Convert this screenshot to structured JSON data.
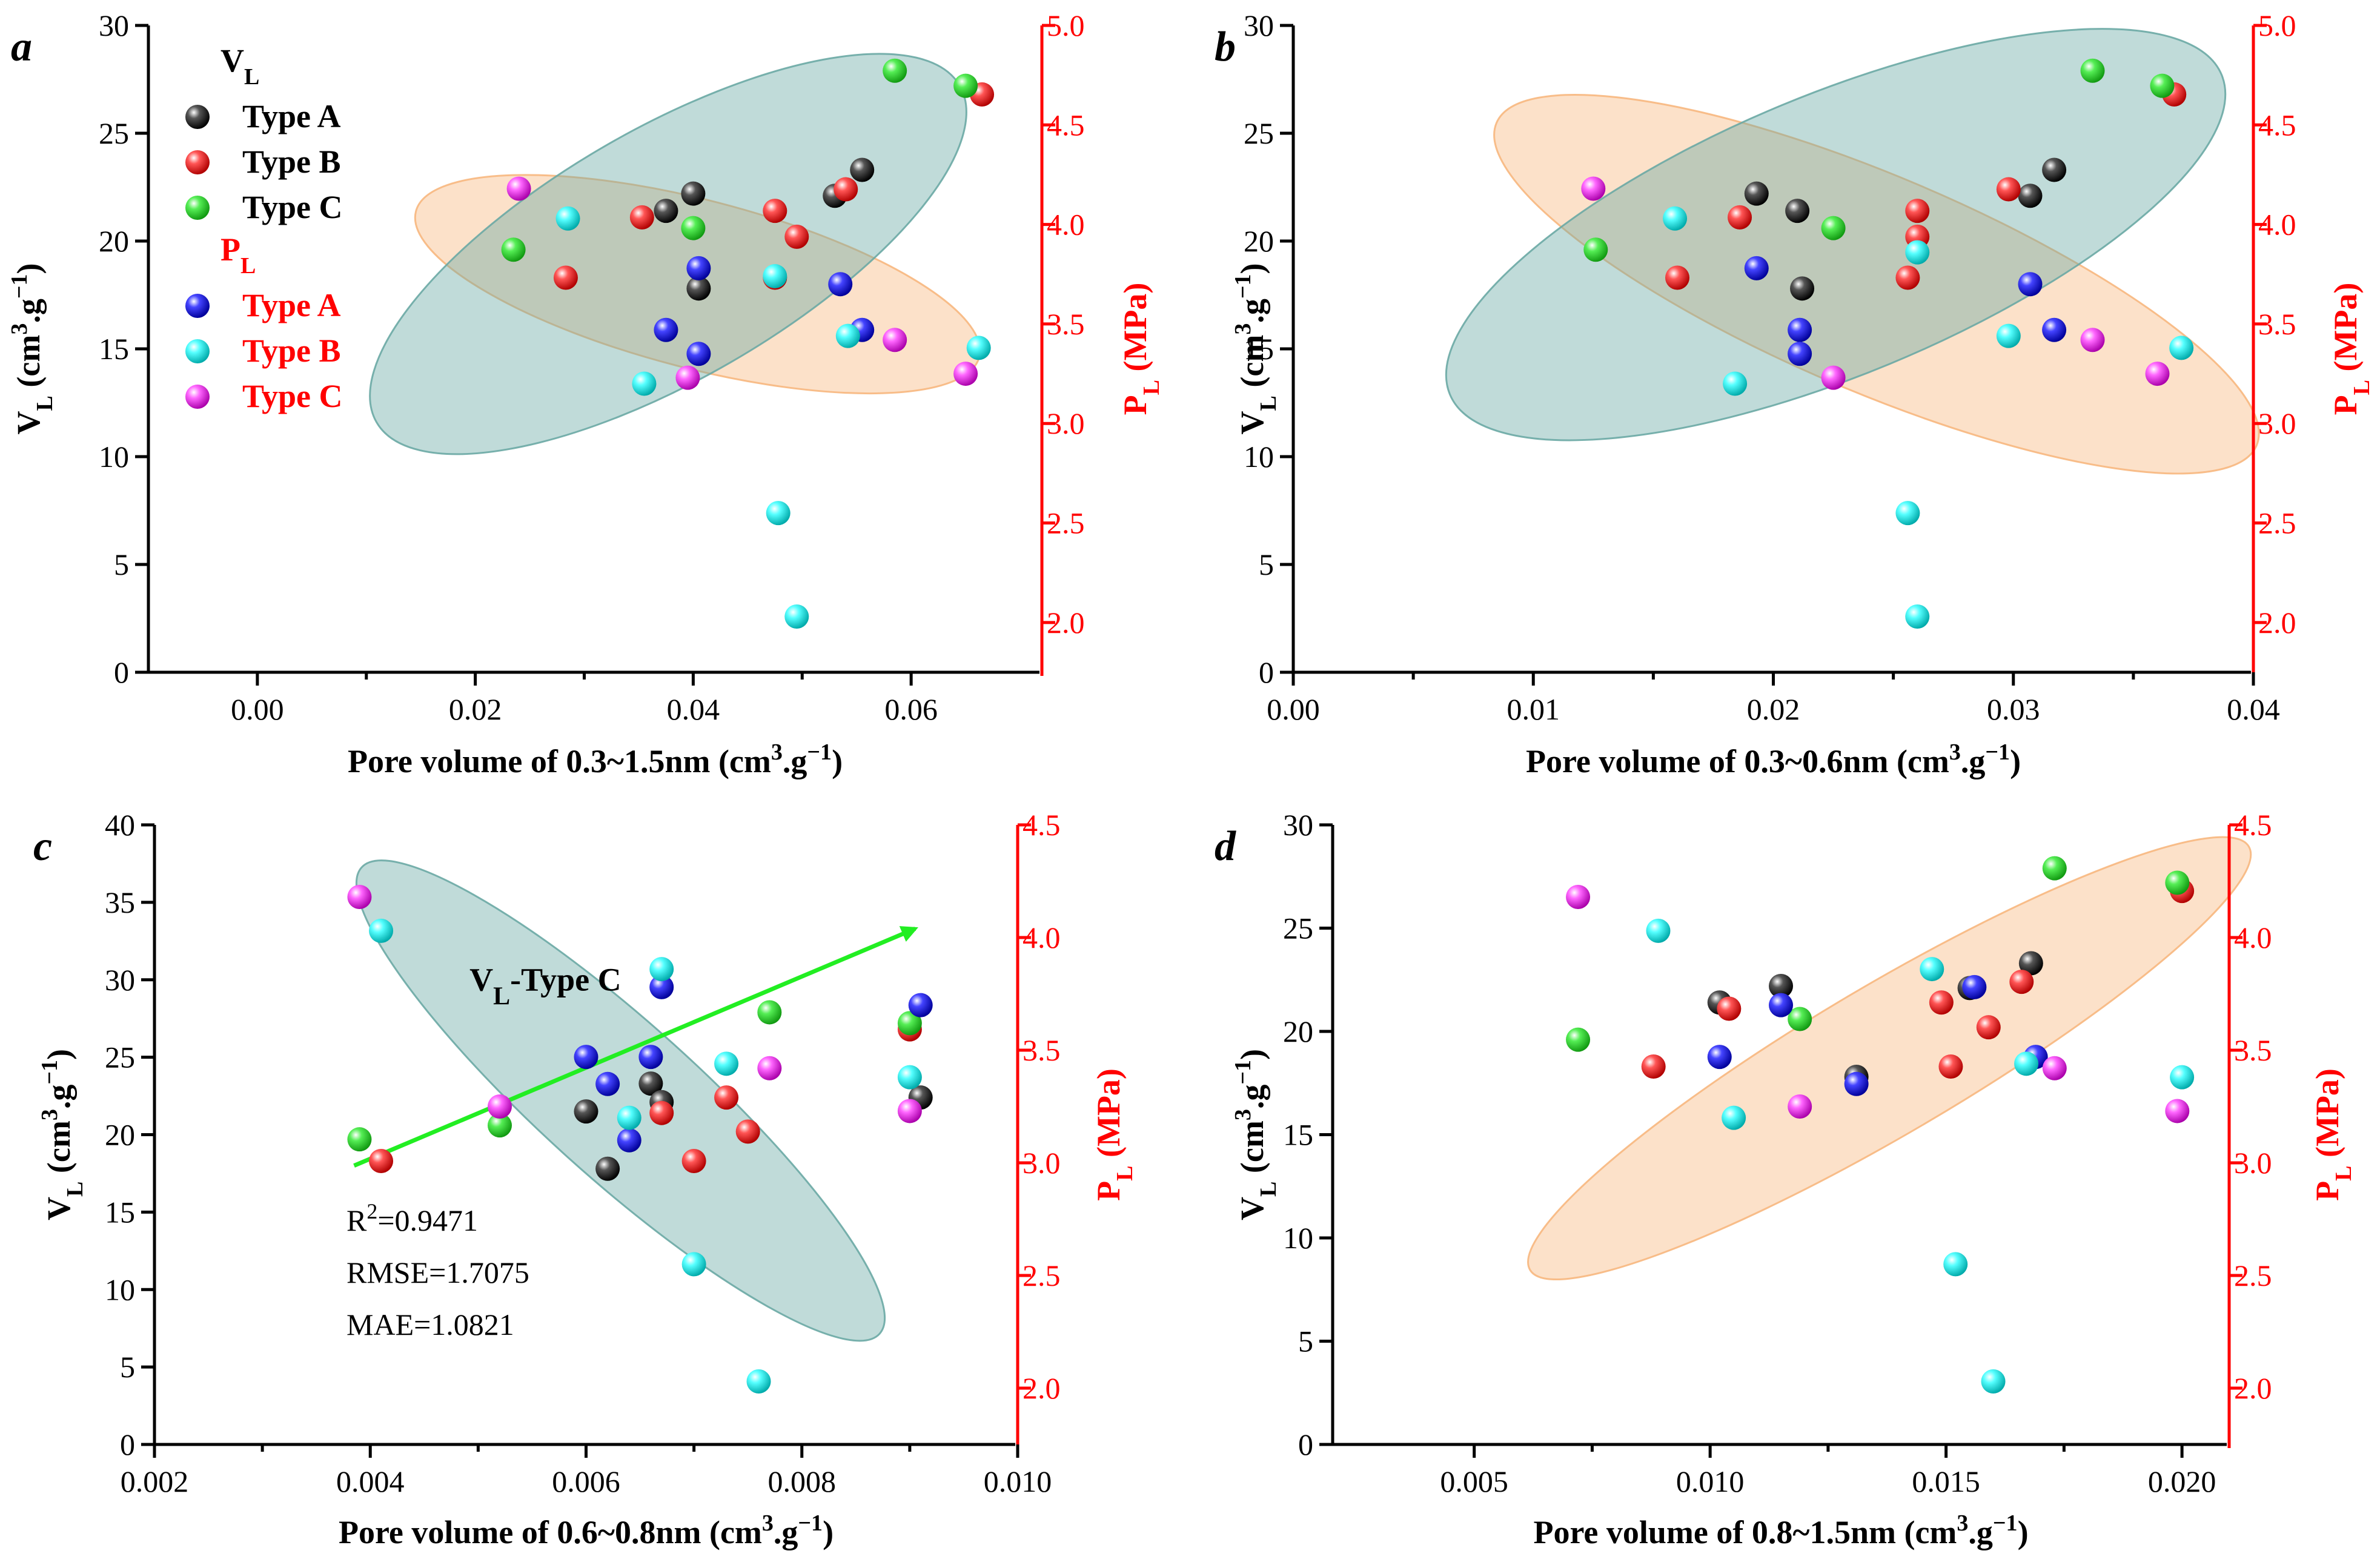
{
  "colors": {
    "type_a_vl": "#111111",
    "type_b_vl": "#ee1111",
    "type_c_vl": "#22dd22",
    "type_a_pl": "#1a1aee",
    "type_b_pl": "#22eeee",
    "type_c_pl": "#ee33ee",
    "axis_right": "#ff0000",
    "ellipse_teal": "#6aa9a4",
    "ellipse_orange": "#f7b77e",
    "arrow": "#22ee22"
  },
  "legend": {
    "vl_header": "V",
    "vl_header_sub": "L",
    "pl_header": "P",
    "pl_header_sub": "L",
    "type_a": "Type A",
    "type_b": "Type B",
    "type_c": "Type C"
  },
  "common": {
    "ylabel_left": "V",
    "ylabel_left_sub": "L",
    "ylabel_left_units": " (cm",
    "ylabel_left_sup": "3",
    "ylabel_left_tail": ".g",
    "ylabel_left_sup2": "−1",
    "ylabel_left_close": ")",
    "ylabel_right": "P",
    "ylabel_right_sub": "L",
    "ylabel_right_units": " (MPa)",
    "xlabel_units": " (cm",
    "xlabel_sup": "3",
    "xlabel_tail": ".g",
    "xlabel_sup2": "−1",
    "xlabel_close": ")"
  },
  "chart_data": [
    {
      "panel": "a",
      "type": "scatter",
      "xlabel": "Pore volume of 0.3~1.5nm",
      "xlim": [
        -0.01,
        0.072
      ],
      "xticks": [
        0.0,
        0.02,
        0.04,
        0.06
      ],
      "xticklabels": [
        "0.00",
        "0.02",
        "0.04",
        "0.06"
      ],
      "ylim_left": [
        0,
        30
      ],
      "yticks_left": [
        0,
        5,
        10,
        15,
        20,
        25,
        30
      ],
      "yticklabels_left": [
        "0",
        "5",
        "10",
        "15",
        "20",
        "25",
        "30"
      ],
      "ylim_right": [
        1.75,
        5.0
      ],
      "yticks_right": [
        2.0,
        2.5,
        3.0,
        3.5,
        4.0,
        4.5,
        5.0
      ],
      "yticklabels_right": [
        "2.0",
        "2.5",
        "3.0",
        "3.5",
        "4.0",
        "4.5",
        "5.0"
      ],
      "ellipses": [
        {
          "color": "orange",
          "cx": 0.0404,
          "cy": 18.0,
          "rx": 0.0267,
          "ry": 3.9,
          "angle_deg": 14.5
        },
        {
          "color": "teal",
          "cx": 0.0377,
          "cy": 19.4,
          "rx": 0.0309,
          "ry": 5.8,
          "angle_deg": -30.0
        }
      ],
      "series": [
        {
          "name": "VL Type A",
          "axis": "left",
          "points": [
            [
              0.0375,
              21.4
            ],
            [
              0.04,
              22.2
            ],
            [
              0.053,
              22.1
            ],
            [
              0.0555,
              23.3
            ],
            [
              0.0405,
              17.8
            ]
          ]
        },
        {
          "name": "VL Type B",
          "axis": "left",
          "points": [
            [
              0.0353,
              21.1
            ],
            [
              0.0475,
              21.4
            ],
            [
              0.0283,
              18.3
            ],
            [
              0.0475,
              18.3
            ],
            [
              0.0495,
              20.2
            ],
            [
              0.054,
              22.4
            ],
            [
              0.0665,
              26.8
            ]
          ]
        },
        {
          "name": "VL Type C",
          "axis": "left",
          "points": [
            [
              0.0235,
              19.6
            ],
            [
              0.04,
              20.6
            ],
            [
              0.0585,
              27.9
            ],
            [
              0.065,
              27.2
            ]
          ]
        },
        {
          "name": "PL Type A",
          "axis": "right",
          "points": [
            [
              0.0375,
              3.47
            ],
            [
              0.0405,
              3.78
            ],
            [
              0.0405,
              3.35
            ],
            [
              0.0535,
              3.7
            ],
            [
              0.0555,
              3.47
            ]
          ]
        },
        {
          "name": "PL Type B",
          "axis": "right",
          "points": [
            [
              0.0285,
              4.03
            ],
            [
              0.0355,
              3.2
            ],
            [
              0.0475,
              3.74
            ],
            [
              0.0478,
              2.55
            ],
            [
              0.0495,
              2.03
            ],
            [
              0.0542,
              3.44
            ],
            [
              0.0662,
              3.38
            ]
          ]
        },
        {
          "name": "PL Type C",
          "axis": "right",
          "points": [
            [
              0.024,
              4.18
            ],
            [
              0.0395,
              3.23
            ],
            [
              0.0585,
              3.42
            ],
            [
              0.065,
              3.25
            ]
          ]
        }
      ]
    },
    {
      "panel": "b",
      "type": "scatter",
      "xlabel": "Pore volume of 0.3~0.6nm",
      "xlim": [
        0.0,
        0.04
      ],
      "xticks": [
        0.0,
        0.01,
        0.02,
        0.03,
        0.04
      ],
      "xticklabels": [
        "0.00",
        "0.01",
        "0.02",
        "0.03",
        "0.04"
      ],
      "ylim_left": [
        0,
        30
      ],
      "yticks_left": [
        0,
        5,
        10,
        15,
        20,
        25,
        30
      ],
      "yticklabels_left": [
        "0",
        "5",
        "10",
        "15",
        "20",
        "25",
        "30"
      ],
      "ylim_right": [
        1.75,
        5.0
      ],
      "yticks_right": [
        2.0,
        2.5,
        3.0,
        3.5,
        4.0,
        4.5,
        5.0
      ],
      "yticklabels_right": [
        "2.0",
        "2.5",
        "3.0",
        "3.5",
        "4.0",
        "4.5",
        "5.0"
      ],
      "ellipses": [
        {
          "color": "orange",
          "cx": 0.0243,
          "cy": 18.0,
          "rx": 0.0172,
          "ry": 5.0,
          "angle_deg": 23.0
        },
        {
          "color": "teal",
          "cx": 0.0226,
          "cy": 20.3,
          "rx": 0.0174,
          "ry": 6.5,
          "angle_deg": -22.5
        }
      ],
      "series": [
        {
          "name": "VL Type A",
          "axis": "left",
          "points": [
            [
              0.0193,
              22.2
            ],
            [
              0.021,
              21.4
            ],
            [
              0.0212,
              17.8
            ],
            [
              0.0307,
              22.1
            ],
            [
              0.0317,
              23.3
            ]
          ]
        },
        {
          "name": "VL Type B",
          "axis": "left",
          "points": [
            [
              0.016,
              18.3
            ],
            [
              0.0186,
              21.1
            ],
            [
              0.0256,
              18.3
            ],
            [
              0.026,
              21.4
            ],
            [
              0.026,
              20.2
            ],
            [
              0.0298,
              22.4
            ],
            [
              0.0367,
              26.8
            ]
          ]
        },
        {
          "name": "VL Type C",
          "axis": "left",
          "points": [
            [
              0.0126,
              19.6
            ],
            [
              0.0225,
              20.6
            ],
            [
              0.0333,
              27.9
            ],
            [
              0.0362,
              27.2
            ]
          ]
        },
        {
          "name": "PL Type A",
          "axis": "right",
          "points": [
            [
              0.0193,
              3.78
            ],
            [
              0.0211,
              3.47
            ],
            [
              0.0211,
              3.35
            ],
            [
              0.0307,
              3.7
            ],
            [
              0.0317,
              3.47
            ]
          ]
        },
        {
          "name": "PL Type B",
          "axis": "right",
          "points": [
            [
              0.0159,
              4.03
            ],
            [
              0.0184,
              3.2
            ],
            [
              0.0256,
              2.55
            ],
            [
              0.026,
              2.03
            ],
            [
              0.026,
              3.86
            ],
            [
              0.0298,
              3.44
            ],
            [
              0.037,
              3.38
            ]
          ]
        },
        {
          "name": "PL Type C",
          "axis": "right",
          "points": [
            [
              0.0125,
              4.18
            ],
            [
              0.0225,
              3.23
            ],
            [
              0.0333,
              3.42
            ],
            [
              0.036,
              3.25
            ]
          ]
        }
      ]
    },
    {
      "panel": "c",
      "type": "scatter",
      "xlabel": "Pore volume of 0.6~0.8nm",
      "xlim": [
        0.002,
        0.01
      ],
      "xticks": [
        0.002,
        0.004,
        0.006,
        0.008,
        0.01
      ],
      "xticklabels": [
        "0.002",
        "0.004",
        "0.006",
        "0.008",
        "0.010"
      ],
      "ylim_left": [
        0,
        40
      ],
      "yticks_left": [
        0,
        5,
        10,
        15,
        20,
        25,
        30,
        35,
        40
      ],
      "yticklabels_left": [
        "0",
        "5",
        "10",
        "15",
        "20",
        "25",
        "30",
        "35",
        "40"
      ],
      "ylim_right": [
        1.75,
        4.5
      ],
      "yticks_right": [
        2.0,
        2.5,
        3.0,
        3.5,
        4.0,
        4.5
      ],
      "yticklabels_right": [
        "2.0",
        "2.5",
        "3.0",
        "3.5",
        "4.0",
        "4.5"
      ],
      "ellipses": [
        {
          "color": "teal",
          "cx": 0.00632,
          "cy": 22.2,
          "rx": 0.00323,
          "ry": 5.0,
          "angle_deg": 42.0
        }
      ],
      "annotation_label": "V",
      "annotation_label_sub": "L",
      "annotation_label_tail": "-Type C",
      "trend_arrow": {
        "x0": 0.00385,
        "y0": 18.0,
        "x1": 0.00905,
        "y1": 33.3
      },
      "stats": {
        "r2_label": "R",
        "r2_sup": "2",
        "r2_value": "=0.9471",
        "rmse": "RMSE=1.7075",
        "mae": "MAE=1.0821"
      },
      "series": [
        {
          "name": "VL Type A",
          "axis": "left",
          "points": [
            [
              0.006,
              21.5
            ],
            [
              0.0062,
              17.8
            ],
            [
              0.0066,
              23.3
            ],
            [
              0.0067,
              22.1
            ],
            [
              0.0091,
              22.4
            ]
          ]
        },
        {
          "name": "VL Type B",
          "axis": "left",
          "points": [
            [
              0.0041,
              18.3
            ],
            [
              0.0067,
              21.4
            ],
            [
              0.007,
              18.3
            ],
            [
              0.0073,
              22.4
            ],
            [
              0.0075,
              20.2
            ],
            [
              0.009,
              26.8
            ]
          ]
        },
        {
          "name": "VL Type C",
          "axis": "left",
          "points": [
            [
              0.0039,
              19.7
            ],
            [
              0.0052,
              20.6
            ],
            [
              0.0077,
              27.9
            ],
            [
              0.009,
              27.2
            ]
          ]
        },
        {
          "name": "PL Type A",
          "axis": "right",
          "points": [
            [
              0.006,
              3.47
            ],
            [
              0.0062,
              3.35
            ],
            [
              0.0064,
              3.1
            ],
            [
              0.0066,
              3.47
            ],
            [
              0.0067,
              3.78
            ],
            [
              0.0091,
              3.7
            ]
          ]
        },
        {
          "name": "PL Type B",
          "axis": "right",
          "points": [
            [
              0.0041,
              4.03
            ],
            [
              0.0064,
              3.2
            ],
            [
              0.0067,
              3.86
            ],
            [
              0.007,
              2.55
            ],
            [
              0.0073,
              3.44
            ],
            [
              0.0076,
              2.03
            ],
            [
              0.009,
              3.38
            ]
          ]
        },
        {
          "name": "PL Type C",
          "axis": "right",
          "points": [
            [
              0.0039,
              4.18
            ],
            [
              0.0052,
              3.25
            ],
            [
              0.0077,
              3.42
            ],
            [
              0.009,
              3.23
            ]
          ]
        }
      ]
    },
    {
      "panel": "d",
      "type": "scatter",
      "xlabel": "Pore volume of 0.8~1.5nm",
      "xlim": [
        0.002,
        0.021
      ],
      "xticks": [
        0.005,
        0.01,
        0.015,
        0.02
      ],
      "xticklabels": [
        "0.005",
        "0.010",
        "0.015",
        "0.020"
      ],
      "ylim_left": [
        0,
        30
      ],
      "yticks_left": [
        0,
        5,
        10,
        15,
        20,
        25,
        30
      ],
      "yticklabels_left": [
        "0",
        "5",
        "10",
        "15",
        "20",
        "25",
        "30"
      ],
      "ylim_right": [
        1.75,
        4.5
      ],
      "yticks_right": [
        2.0,
        2.5,
        3.0,
        3.5,
        4.0,
        4.5
      ],
      "yticklabels_right": [
        "2.0",
        "2.5",
        "3.0",
        "3.5",
        "4.0",
        "4.5"
      ],
      "ellipses": [
        {
          "color": "orange",
          "cx": 0.0138,
          "cy": 18.7,
          "rx": 0.00884,
          "ry": 3.6,
          "angle_deg": -30.5
        }
      ],
      "series": [
        {
          "name": "VL Type A",
          "axis": "left",
          "points": [
            [
              0.0102,
              21.4
            ],
            [
              0.0115,
              22.2
            ],
            [
              0.0155,
              22.1
            ],
            [
              0.0168,
              23.3
            ],
            [
              0.0131,
              17.8
            ]
          ]
        },
        {
          "name": "VL Type B",
          "axis": "left",
          "points": [
            [
              0.0088,
              18.3
            ],
            [
              0.0104,
              21.1
            ],
            [
              0.0149,
              21.4
            ],
            [
              0.0151,
              18.3
            ],
            [
              0.0159,
              20.2
            ],
            [
              0.0166,
              22.4
            ],
            [
              0.02,
              26.8
            ]
          ]
        },
        {
          "name": "VL Type C",
          "axis": "left",
          "points": [
            [
              0.0072,
              19.6
            ],
            [
              0.0119,
              20.6
            ],
            [
              0.0173,
              27.9
            ],
            [
              0.0199,
              27.2
            ]
          ]
        },
        {
          "name": "PL Type A",
          "axis": "right",
          "points": [
            [
              0.0102,
              3.47
            ],
            [
              0.0115,
              3.7
            ],
            [
              0.0131,
              3.35
            ],
            [
              0.0156,
              3.78
            ],
            [
              0.0169,
              3.47
            ]
          ]
        },
        {
          "name": "PL Type B",
          "axis": "right",
          "points": [
            [
              0.0089,
              4.03
            ],
            [
              0.0105,
              3.2
            ],
            [
              0.0147,
              3.86
            ],
            [
              0.0152,
              2.55
            ],
            [
              0.016,
              2.03
            ],
            [
              0.0167,
              3.44
            ],
            [
              0.02,
              3.38
            ]
          ]
        },
        {
          "name": "PL Type C",
          "axis": "right",
          "points": [
            [
              0.0072,
              4.18
            ],
            [
              0.0119,
              3.25
            ],
            [
              0.0173,
              3.42
            ],
            [
              0.0199,
              3.23
            ]
          ]
        }
      ]
    }
  ]
}
